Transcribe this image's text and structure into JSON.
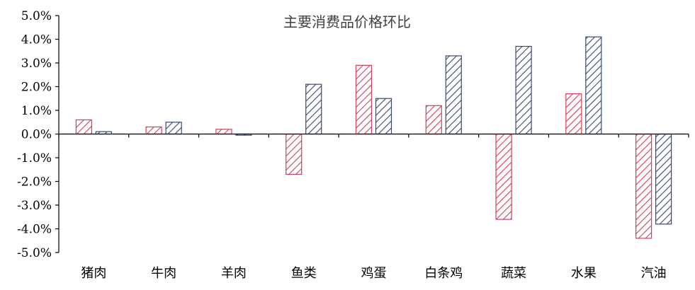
{
  "chart_data": {
    "type": "bar",
    "title": "主要消费品价格环比",
    "xlabel": "",
    "ylabel": "",
    "ylim": [
      -5.0,
      5.0
    ],
    "yticks": [
      "5.0%",
      "4.0%",
      "3.0%",
      "2.0%",
      "1.0%",
      "0.0%",
      "-1.0%",
      "-2.0%",
      "-3.0%",
      "-4.0%",
      "-5.0%"
    ],
    "categories": [
      "猪肉",
      "牛肉",
      "羊肉",
      "鱼类",
      "鸡蛋",
      "白条鸡",
      "蔬菜",
      "水果",
      "汽油"
    ],
    "series": [
      {
        "values": [
          0.6,
          0.3,
          0.2,
          -1.7,
          2.9,
          1.2,
          -3.6,
          1.7,
          -4.4
        ],
        "color": "#d43f5a",
        "pattern": "diagonal-hatch"
      },
      {
        "values": [
          0.1,
          0.5,
          -0.05,
          2.1,
          1.5,
          3.3,
          3.7,
          4.1,
          -3.8
        ],
        "color": "#3a4a6e",
        "pattern": "diagonal-hatch"
      }
    ],
    "grid": false,
    "legend": "none"
  }
}
